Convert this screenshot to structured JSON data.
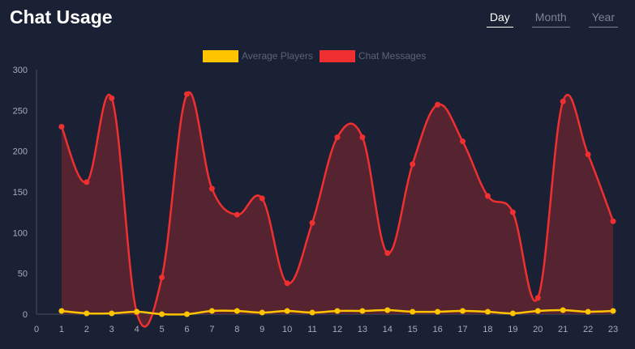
{
  "header": {
    "title": "Chat Usage",
    "tabs": [
      {
        "label": "Day",
        "active": true
      },
      {
        "label": "Month",
        "active": false
      },
      {
        "label": "Year",
        "active": false
      }
    ]
  },
  "colors": {
    "background": "#1b2135",
    "players": "#ffc400",
    "messages": "#f03030",
    "messages_fill": "#5a2432"
  },
  "chart_data": {
    "type": "area",
    "x": [
      1,
      2,
      3,
      4,
      5,
      6,
      7,
      8,
      9,
      10,
      11,
      12,
      13,
      14,
      15,
      16,
      17,
      18,
      19,
      20,
      21,
      22,
      23
    ],
    "x_ticks": [
      0,
      1,
      2,
      3,
      4,
      5,
      6,
      7,
      8,
      9,
      10,
      11,
      12,
      13,
      14,
      15,
      16,
      17,
      18,
      19,
      20,
      21,
      22,
      23
    ],
    "y_ticks": [
      0,
      50,
      100,
      150,
      200,
      250,
      300
    ],
    "xlim": [
      0,
      23
    ],
    "ylim": [
      0,
      300
    ],
    "legend_position": "top-center",
    "grid": false,
    "series": [
      {
        "name": "Average Players",
        "color": "#ffc400",
        "fill": false,
        "values": [
          4,
          1,
          1,
          3,
          0,
          0,
          4,
          4,
          2,
          4,
          2,
          4,
          4,
          5,
          3,
          3,
          4,
          3,
          1,
          4,
          5,
          3,
          4
        ]
      },
      {
        "name": "Chat Messages",
        "color": "#f03030",
        "fill": true,
        "values": [
          230,
          162,
          265,
          2,
          45,
          270,
          154,
          122,
          142,
          38,
          112,
          217,
          217,
          75,
          184,
          257,
          212,
          145,
          125,
          20,
          261,
          196,
          114
        ]
      }
    ]
  }
}
